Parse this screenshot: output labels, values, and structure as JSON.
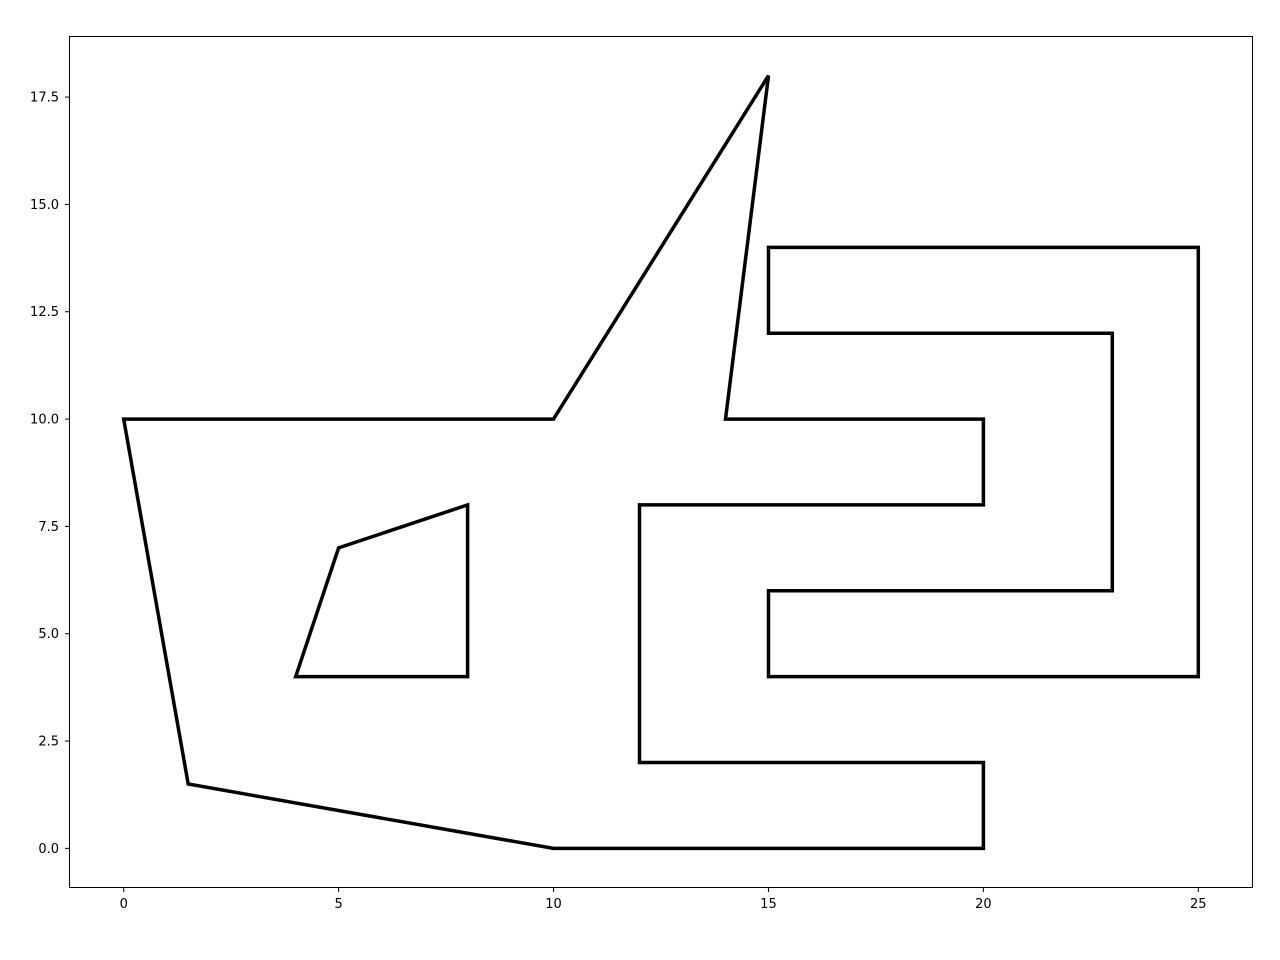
{
  "chart_data": {
    "type": "line",
    "title": "",
    "xlabel": "",
    "ylabel": "",
    "xlim": [
      -1.25,
      26.25
    ],
    "ylim": [
      -0.9,
      18.9
    ],
    "grid": false,
    "legend": "none",
    "line_color": "#000000",
    "x_ticks": [
      {
        "value": 0,
        "label": "0"
      },
      {
        "value": 5,
        "label": "5"
      },
      {
        "value": 10,
        "label": "10"
      },
      {
        "value": 15,
        "label": "15"
      },
      {
        "value": 20,
        "label": "20"
      },
      {
        "value": 25,
        "label": "25"
      }
    ],
    "y_ticks": [
      {
        "value": 0.0,
        "label": "0.0"
      },
      {
        "value": 2.5,
        "label": "2.5"
      },
      {
        "value": 5.0,
        "label": "5.0"
      },
      {
        "value": 7.5,
        "label": "7.5"
      },
      {
        "value": 10.0,
        "label": "10.0"
      },
      {
        "value": 12.5,
        "label": "12.5"
      },
      {
        "value": 15.0,
        "label": "15.0"
      },
      {
        "value": 17.5,
        "label": "17.5"
      }
    ],
    "series": [
      {
        "closed": true,
        "points": [
          [
            0,
            10
          ],
          [
            10,
            10
          ],
          [
            15,
            18
          ],
          [
            14,
            10
          ],
          [
            20,
            10
          ],
          [
            20,
            8
          ],
          [
            12,
            8
          ],
          [
            12,
            2
          ],
          [
            20,
            2
          ],
          [
            20,
            0
          ],
          [
            10,
            0
          ],
          [
            1.5,
            1.5
          ]
        ]
      },
      {
        "closed": true,
        "points": [
          [
            4,
            4
          ],
          [
            8,
            4
          ],
          [
            8,
            8
          ],
          [
            5,
            7
          ]
        ]
      },
      {
        "closed": true,
        "points": [
          [
            15,
            14
          ],
          [
            25,
            14
          ],
          [
            25,
            4
          ],
          [
            15,
            4
          ],
          [
            15,
            6
          ],
          [
            23,
            6
          ],
          [
            23,
            12
          ],
          [
            15,
            12
          ]
        ]
      }
    ]
  }
}
